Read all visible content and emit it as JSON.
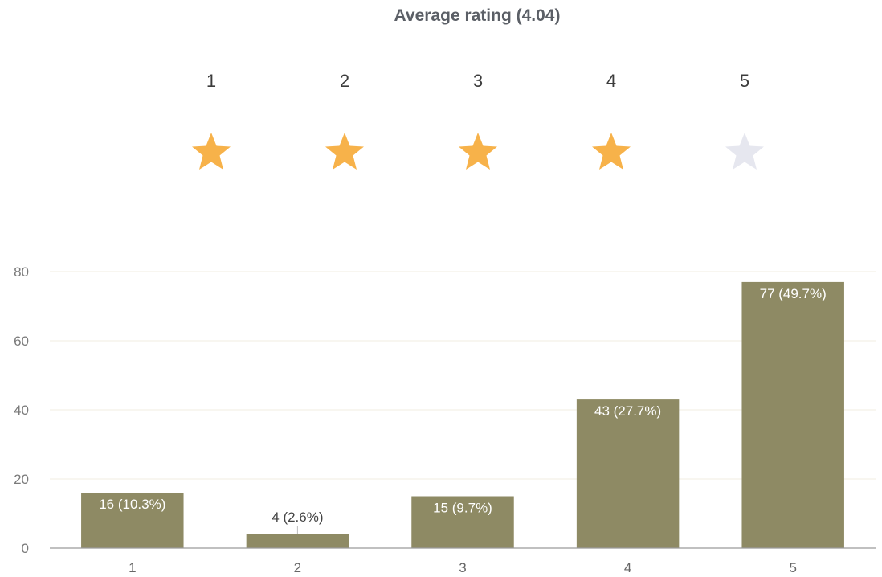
{
  "header": {
    "title": "Average rating (4.04)"
  },
  "rating_scale": {
    "labels": [
      "1",
      "2",
      "3",
      "4",
      "5"
    ],
    "filled_stars": 4,
    "colors": {
      "filled": "#f7b24a",
      "empty": "#e6e7ef"
    },
    "icon": "star-icon"
  },
  "chart_data": {
    "type": "bar",
    "categories": [
      "1",
      "2",
      "3",
      "4",
      "5"
    ],
    "values": [
      16,
      4,
      15,
      43,
      77
    ],
    "data_labels": [
      "16 (10.3%)",
      "4 (2.6%)",
      "15 (9.7%)",
      "43 (27.7%)",
      "77 (49.7%)"
    ],
    "title": "",
    "xlabel": "",
    "ylabel": "",
    "ylim": [
      0,
      80
    ],
    "yticks": [
      "0",
      "20",
      "40",
      "60",
      "80"
    ],
    "grid": true,
    "bar_color": "#8e8a64",
    "grid_color": "#f1eee2"
  }
}
